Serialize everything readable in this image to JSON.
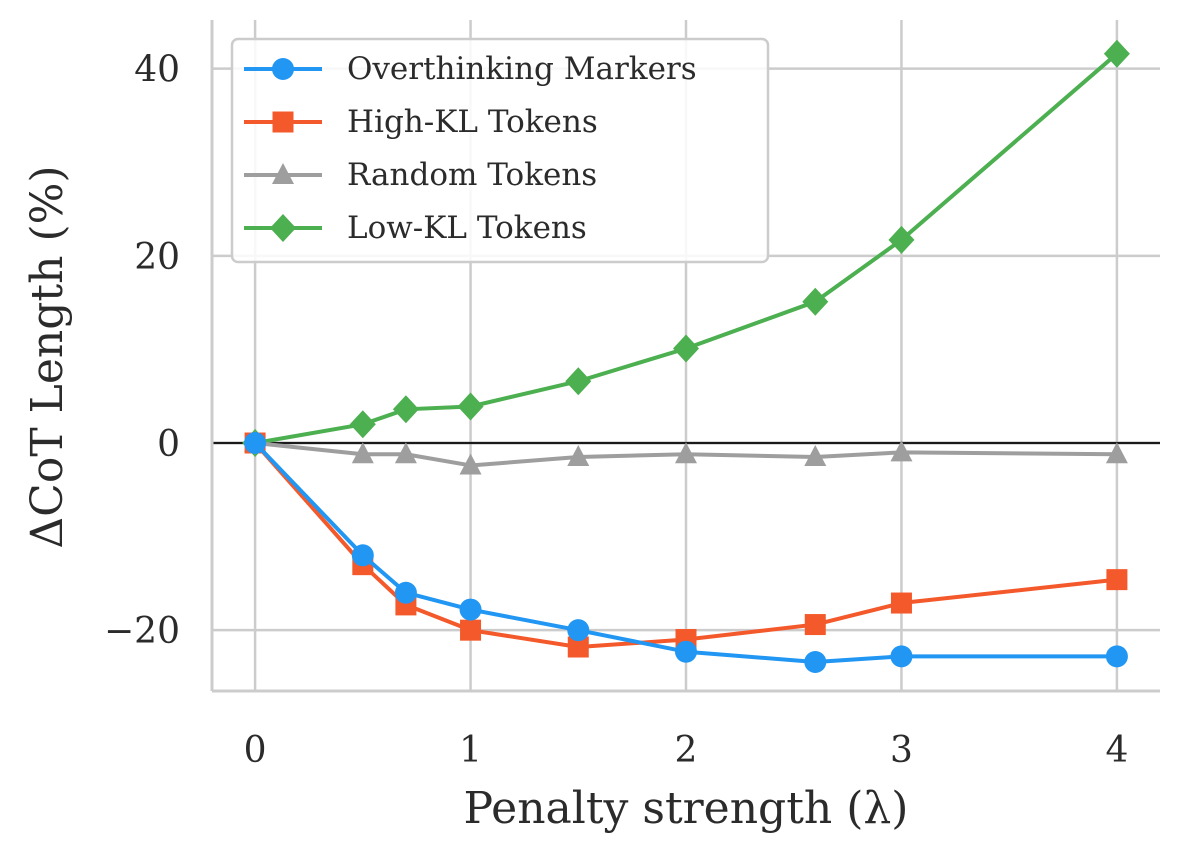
{
  "chart_data": {
    "type": "line",
    "title": "",
    "xlabel": "Penalty strength (λ)",
    "ylabel": "ΔCoT Length (%)",
    "xlim": [
      -0.2,
      4.2
    ],
    "ylim": [
      -26.5,
      45.2
    ],
    "xticks": [
      0,
      1,
      2,
      3,
      4
    ],
    "xtick_labels": [
      "0",
      "1",
      "2",
      "3",
      "4"
    ],
    "yticks": [
      -20,
      0,
      20,
      40
    ],
    "ytick_labels": [
      "−20",
      "0",
      "20",
      "40"
    ],
    "grid": true,
    "zero_line": true,
    "legend_position": "top-left",
    "series": [
      {
        "name": "Overthinking Markers",
        "color": "#2196F3",
        "marker": "circle",
        "x": [
          0,
          0.5,
          0.7,
          1.0,
          1.5,
          2.0,
          2.6,
          3.0,
          4.0
        ],
        "y": [
          0,
          -12.0,
          -16.0,
          -17.8,
          -20.0,
          -22.3,
          -23.4,
          -22.8,
          -22.8
        ]
      },
      {
        "name": "High-KL Tokens",
        "color": "#F4592B",
        "marker": "square",
        "x": [
          0,
          0.5,
          0.7,
          1.0,
          1.5,
          2.0,
          2.6,
          3.0,
          4.0
        ],
        "y": [
          0,
          -13.0,
          -17.3,
          -20.0,
          -21.8,
          -21.0,
          -19.4,
          -17.1,
          -14.6
        ]
      },
      {
        "name": "Random Tokens",
        "color": "#9E9E9E",
        "marker": "triangle",
        "x": [
          0,
          0.5,
          0.7,
          1.0,
          1.5,
          2.0,
          2.6,
          3.0,
          4.0
        ],
        "y": [
          0,
          -1.2,
          -1.2,
          -2.4,
          -1.5,
          -1.2,
          -1.5,
          -1.0,
          -1.2
        ]
      },
      {
        "name": "Low-KL Tokens",
        "color": "#4CAF50",
        "marker": "diamond",
        "x": [
          0,
          0.5,
          0.7,
          1.0,
          1.5,
          2.0,
          2.6,
          3.0,
          4.0
        ],
        "y": [
          0,
          2.0,
          3.6,
          3.9,
          6.6,
          10.1,
          15.1,
          21.7,
          41.6
        ]
      }
    ]
  }
}
